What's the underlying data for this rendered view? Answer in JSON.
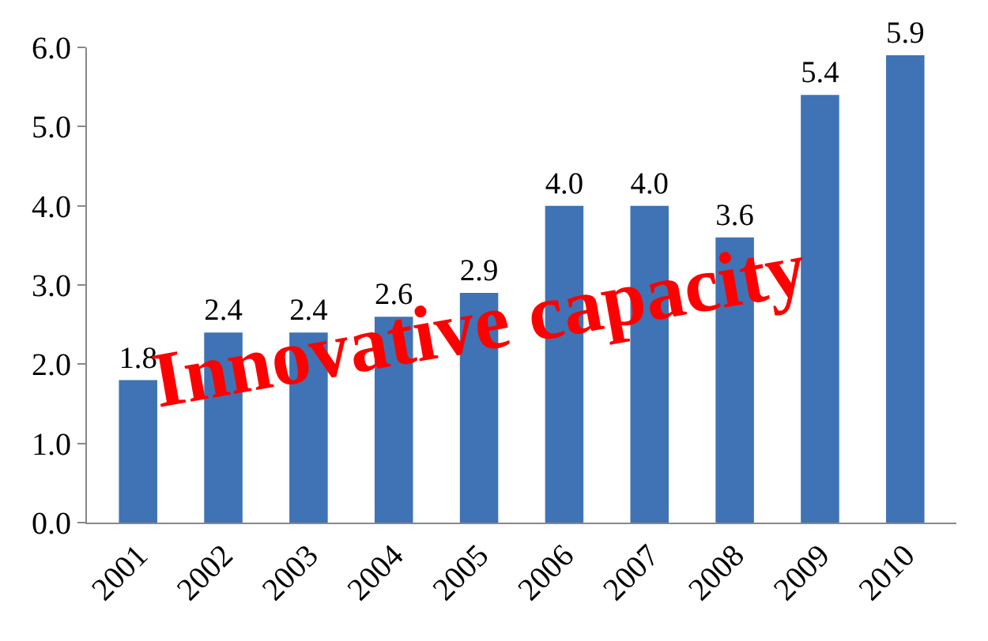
{
  "chart_data": {
    "type": "bar",
    "title": "Innovative capacity",
    "categories": [
      "2001",
      "2002",
      "2003",
      "2004",
      "2005",
      "2006",
      "2007",
      "2008",
      "2009",
      "2010"
    ],
    "values": [
      1.8,
      2.4,
      2.4,
      2.6,
      2.9,
      4.0,
      4.0,
      3.6,
      5.4,
      5.9
    ],
    "value_labels": [
      "1.8",
      "2.4",
      "2.4",
      "2.6",
      "2.9",
      "4.0",
      "4.0",
      "3.6",
      "5.4",
      "5.9"
    ],
    "color": "#3f73b5",
    "ylim": [
      0,
      6
    ],
    "yticks": [
      {
        "value": 0,
        "label": "0.0"
      },
      {
        "value": 1,
        "label": "1.0"
      },
      {
        "value": 2,
        "label": "2.0"
      },
      {
        "value": 3,
        "label": "3.0"
      },
      {
        "value": 4,
        "label": "4.0"
      },
      {
        "value": 5,
        "label": "5.0"
      },
      {
        "value": 6,
        "label": "6.0"
      }
    ],
    "grid": false,
    "legend": false
  }
}
